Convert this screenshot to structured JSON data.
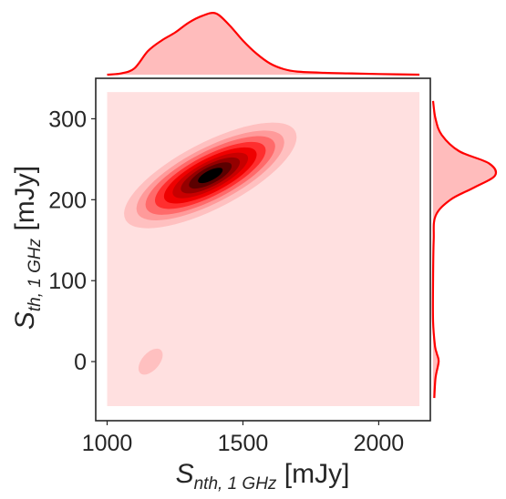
{
  "chart_data": {
    "type": "kde_joint",
    "xlabel": {
      "main": "S",
      "sub": "nth, 1 GHz",
      "unit": " [mJy]"
    },
    "ylabel": {
      "main": "S",
      "sub": "th, 1 GHz",
      "unit": " [mJy]"
    },
    "xlim": [
      958,
      2190
    ],
    "ylim": [
      -73,
      350
    ],
    "xticks": [
      {
        "value": 1000,
        "label": "1000"
      },
      {
        "value": 1500,
        "label": "1500"
      },
      {
        "value": 2000,
        "label": "2000"
      }
    ],
    "yticks": [
      {
        "value": 0,
        "label": "0"
      },
      {
        "value": 100,
        "label": "100"
      },
      {
        "value": 200,
        "label": "200"
      },
      {
        "value": 300,
        "label": "300"
      }
    ],
    "grid": false,
    "colors": {
      "background_fill": "#ffe0e0",
      "levels": [
        "#ffc0c0",
        "#ff9a9a",
        "#ff6a6a",
        "#ff2e2e",
        "#ef0000",
        "#c80000",
        "#950000",
        "#5c0000",
        "#000000"
      ],
      "marginal_line": "#ff0000",
      "marginal_fill": "#ffbcbc",
      "axis": "#262626"
    },
    "fill_region": {
      "x": [
        1000,
        2150
      ],
      "y": [
        -55,
        333
      ]
    },
    "main_mode": {
      "x": 1380,
      "y": 230,
      "angle_deg": 27.5
    },
    "level_radii": [
      [
        210,
        36
      ],
      [
        180,
        30
      ],
      [
        158,
        26
      ],
      [
        135,
        22
      ],
      [
        113,
        18.5
      ],
      [
        92,
        15
      ],
      [
        72,
        12
      ],
      [
        52,
        9
      ],
      [
        30,
        5.5
      ]
    ],
    "secondary_mode": {
      "x": 1160,
      "y": 0,
      "rx": 17,
      "ry": 9.5,
      "angle_deg": -49
    },
    "marginal_x": {
      "x": [
        1000,
        1050,
        1100,
        1150,
        1200,
        1250,
        1300,
        1350,
        1400,
        1450,
        1500,
        1550,
        1600,
        1650,
        1700,
        1800,
        1900,
        2000,
        2150
      ],
      "density": [
        0.0,
        0.02,
        0.1,
        0.38,
        0.55,
        0.68,
        0.84,
        0.95,
        0.99,
        0.8,
        0.55,
        0.34,
        0.18,
        0.09,
        0.05,
        0.03,
        0.02,
        0.01,
        0.0
      ]
    },
    "marginal_y": {
      "y": [
        -45,
        -20,
        0,
        10,
        20,
        50,
        100,
        150,
        180,
        200,
        215,
        230,
        245,
        260,
        280,
        300,
        322
      ],
      "density": [
        0.02,
        0.04,
        0.09,
        0.06,
        0.03,
        0.0,
        0.0,
        0.01,
        0.04,
        0.28,
        0.66,
        1.0,
        0.9,
        0.42,
        0.14,
        0.04,
        0.0
      ]
    }
  }
}
